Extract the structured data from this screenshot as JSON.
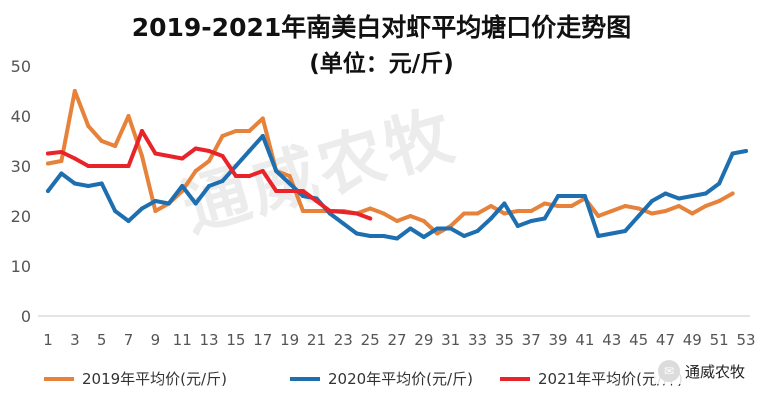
{
  "chart_data": {
    "type": "line",
    "title": "2019-2021年南美白对虾平均塘口价走势图",
    "subtitle": "(单位：元/斤)",
    "xlabel": "",
    "ylabel": "",
    "x_tick_labels": [
      "1",
      "3",
      "5",
      "7",
      "9",
      "11",
      "13",
      "15",
      "17",
      "19",
      "21",
      "23",
      "25",
      "27",
      "29",
      "31",
      "33",
      "35",
      "37",
      "39",
      "41",
      "43",
      "45",
      "47",
      "49",
      "51",
      "53"
    ],
    "y_tick_labels": [
      "0",
      "10",
      "20",
      "30",
      "40",
      "50"
    ],
    "ylim": [
      0,
      50
    ],
    "xlim": [
      1,
      53
    ],
    "grid": false,
    "legend_position": "bottom",
    "series": [
      {
        "name": "2019年平均价(元/斤)",
        "color": "#E6823A",
        "x": [
          1,
          2,
          3,
          4,
          5,
          6,
          7,
          8,
          9,
          10,
          11,
          12,
          13,
          14,
          15,
          16,
          17,
          18,
          19,
          20,
          21,
          22,
          23,
          24,
          25,
          26,
          27,
          28,
          29,
          30,
          31,
          32,
          33,
          34,
          35,
          36,
          37,
          38,
          39,
          40,
          41,
          42,
          43,
          44,
          45,
          46,
          47,
          48,
          49,
          50,
          51,
          52
        ],
        "values": [
          30.5,
          31,
          45,
          38,
          35,
          34,
          40,
          32,
          21,
          22.5,
          25,
          29,
          31,
          36,
          37,
          37,
          39.5,
          29,
          28,
          21,
          21,
          21,
          21,
          20.5,
          21.5,
          20.5,
          19,
          20,
          19,
          16.5,
          18,
          20.5,
          20.5,
          22,
          20.5,
          21,
          21,
          22.5,
          22,
          22,
          23.5,
          20,
          21,
          22,
          21.5,
          20.5,
          21,
          22,
          20.5,
          22,
          23,
          24.5
        ]
      },
      {
        "name": "2020年平均价(元/斤)",
        "color": "#1E6FB0",
        "x": [
          1,
          2,
          3,
          4,
          5,
          6,
          7,
          8,
          9,
          10,
          11,
          12,
          13,
          14,
          15,
          16,
          17,
          18,
          19,
          20,
          21,
          22,
          23,
          24,
          25,
          26,
          27,
          28,
          29,
          30,
          31,
          32,
          33,
          34,
          35,
          36,
          37,
          38,
          39,
          40,
          41,
          42,
          43,
          44,
          45,
          46,
          47,
          48,
          49,
          50,
          51,
          52,
          53
        ],
        "values": [
          25,
          28.5,
          26.5,
          26,
          26.5,
          21,
          19,
          21.5,
          23,
          22.5,
          26,
          22.5,
          26,
          27,
          30,
          33,
          36,
          29,
          26.5,
          24,
          23.5,
          20.5,
          18.5,
          16.5,
          16,
          16,
          15.5,
          17.5,
          15.8,
          17.5,
          17.5,
          16,
          17,
          19.5,
          22.5,
          18,
          19,
          19.5,
          24,
          24,
          24,
          16,
          16.5,
          17,
          20,
          23,
          24.5,
          23.5,
          24,
          24.5,
          26.5,
          32.5,
          33
        ]
      },
      {
        "name": "2021年平均价(元/斤)",
        "color": "#E8242A",
        "x": [
          1,
          2,
          3,
          4,
          5,
          6,
          7,
          8,
          9,
          10,
          11,
          12,
          13,
          14,
          15,
          16,
          17,
          18,
          19,
          20,
          21,
          22,
          23,
          24,
          25
        ],
        "values": [
          32.5,
          32.8,
          31.5,
          30,
          30,
          30,
          30,
          37,
          32.5,
          32,
          31.5,
          33.5,
          33,
          32,
          28,
          28,
          29,
          25,
          25,
          25,
          23,
          21,
          20.8,
          20.5,
          19.5
        ]
      }
    ]
  },
  "watermark": "通威农牧",
  "brand_label": "通威农牧",
  "brand_icon": "wechat-icon"
}
